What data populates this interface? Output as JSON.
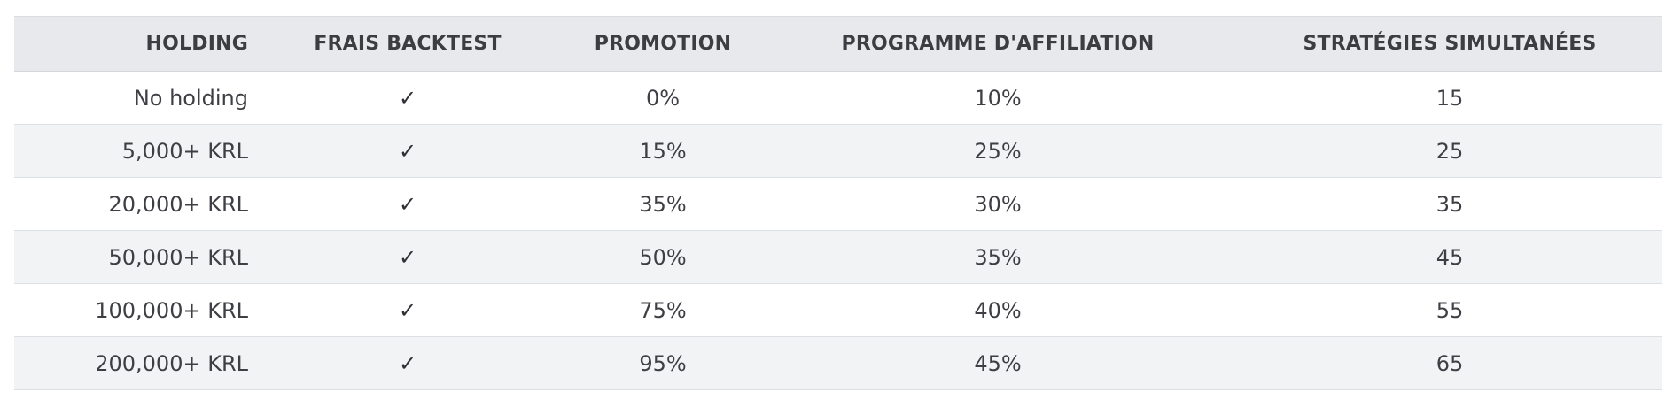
{
  "table": {
    "headers": {
      "holding": "HOLDING",
      "frais_backtest": "FRAIS BACKTEST",
      "promotion": "PROMOTION",
      "affiliation": "PROGRAMME D'AFFILIATION",
      "strategies": "STRATÉGIES SIMULTANÉES"
    },
    "rows": [
      {
        "holding": "No holding",
        "frais_backtest": "✓",
        "promotion": "0%",
        "affiliation": "10%",
        "strategies": "15"
      },
      {
        "holding": "5,000+ KRL",
        "frais_backtest": "✓",
        "promotion": "15%",
        "affiliation": "25%",
        "strategies": "25"
      },
      {
        "holding": "20,000+ KRL",
        "frais_backtest": "✓",
        "promotion": "35%",
        "affiliation": "30%",
        "strategies": "35"
      },
      {
        "holding": "50,000+ KRL",
        "frais_backtest": "✓",
        "promotion": "50%",
        "affiliation": "35%",
        "strategies": "45"
      },
      {
        "holding": "100,000+ KRL",
        "frais_backtest": "✓",
        "promotion": "75%",
        "affiliation": "40%",
        "strategies": "55"
      },
      {
        "holding": "200,000+ KRL",
        "frais_backtest": "✓",
        "promotion": "95%",
        "affiliation": "45%",
        "strategies": "65"
      }
    ]
  },
  "colors": {
    "header_bg": "#e7e9ed",
    "row_alt_bg": "#f2f3f5",
    "text": "#3e3f44"
  }
}
